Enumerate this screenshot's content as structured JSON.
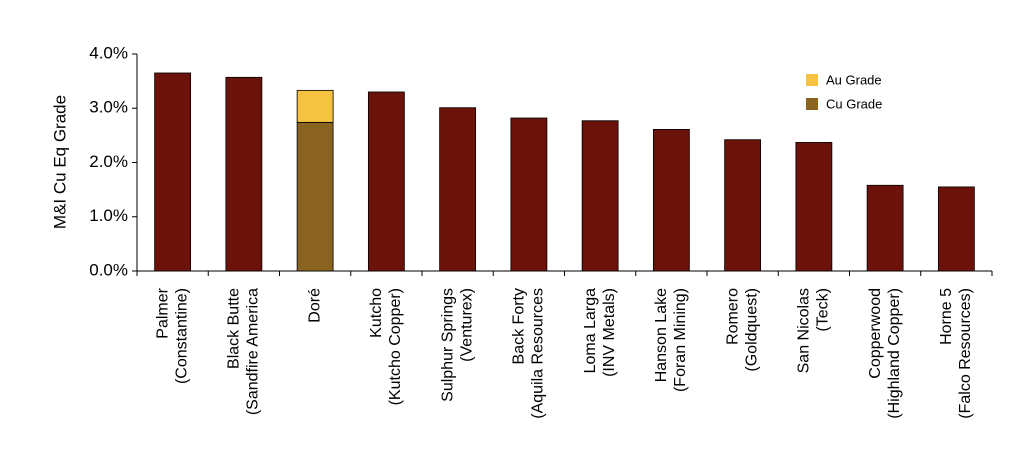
{
  "chart_data": {
    "type": "bar",
    "title": "",
    "xlabel": "",
    "ylabel": "M&I Cu Eq Grade",
    "ylim": [
      0,
      4.0
    ],
    "yticks": [
      "0.0%",
      "1.0%",
      "2.0%",
      "3.0%",
      "4.0%"
    ],
    "grid": false,
    "legend_position": "top-right",
    "categories": [
      [
        "Palmer",
        "(Constantine)"
      ],
      [
        "Black Butte",
        "(Sandfire America"
      ],
      [
        "Doré"
      ],
      [
        "Kutcho",
        "(Kutcho Copper)"
      ],
      [
        "Sulphur Springs",
        "(Venturex)"
      ],
      [
        "Back Forty",
        "(Aquila Resources"
      ],
      [
        "Loma Larga",
        "(INV Metals)"
      ],
      [
        "Hanson Lake",
        "(Foran Mining)"
      ],
      [
        "Romero",
        "(Goldquest)"
      ],
      [
        "San Nicolas",
        "(Teck)"
      ],
      [
        "Copperwood",
        "(Highland Copper)"
      ],
      [
        "Horne 5",
        "(Falco Resources)"
      ]
    ],
    "values": [
      3.65,
      3.57,
      3.33,
      3.3,
      3.01,
      2.82,
      2.77,
      2.61,
      2.42,
      2.37,
      1.58,
      1.55
    ],
    "stacked_highlight": {
      "category_index": 2,
      "series": [
        {
          "name": "Cu Grade",
          "value": 2.74,
          "color": "#8b6321"
        },
        {
          "name": "Au Grade",
          "value": 0.59,
          "color": "#f5c242"
        }
      ]
    },
    "legend": [
      {
        "label": "Au Grade",
        "color": "#f5c242"
      },
      {
        "label": "Cu Grade",
        "color": "#8b6321"
      }
    ],
    "bar_color": "#6b120b"
  }
}
